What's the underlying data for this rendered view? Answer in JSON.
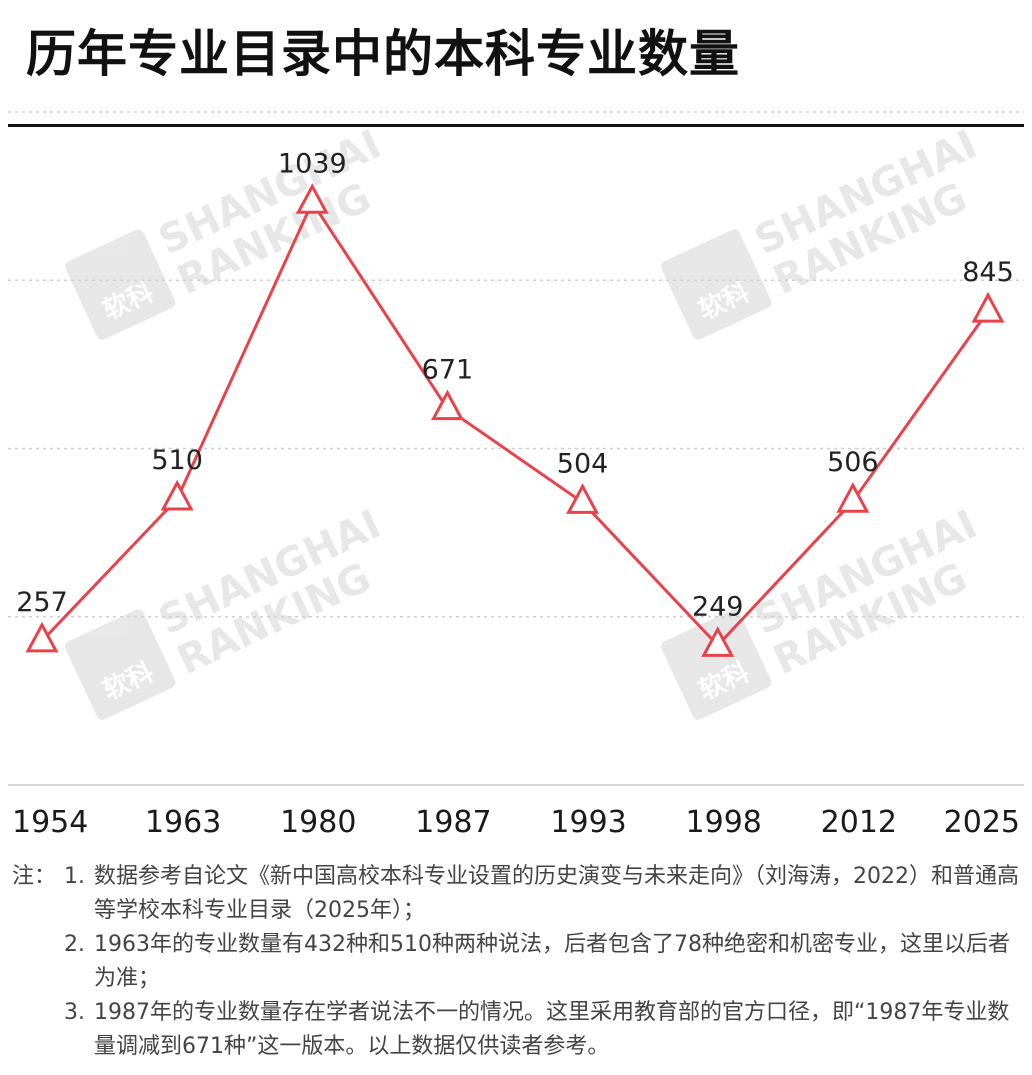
{
  "title": "历年专业目录中的本科专业数量",
  "watermark": {
    "line1": "SHANGHAI",
    "line2": "RANKING",
    "badge": "软科"
  },
  "chart_data": {
    "type": "line",
    "title": "历年专业目录中的本科专业数量",
    "categories": [
      "1954",
      "1963",
      "1980",
      "1987",
      "1993",
      "1998",
      "2012",
      "2025"
    ],
    "series": [
      {
        "values": [
          257,
          510,
          1039,
          671,
          504,
          249,
          506,
          845
        ]
      }
    ],
    "data_labels": [
      "257",
      "510",
      "1039",
      "671",
      "504",
      "249",
      "506",
      "845"
    ],
    "xlabel": "",
    "ylabel": "",
    "ylim": [
      0,
      1200
    ],
    "grid": true,
    "marker": "triangle",
    "line_color": "#e8434a"
  },
  "notes": {
    "prefix": "注：",
    "items": [
      {
        "num": "1.",
        "text": "数据参考自论文《新中国高校本科专业设置的历史演变与未来走向》（刘海涛，2022）和普通高等学校本科专业目录（2025年）；"
      },
      {
        "num": "2.",
        "text": "1963年的专业数量有432种和510种两种说法，后者包含了78种绝密和机密专业，这里以后者为准；"
      },
      {
        "num": "3.",
        "text": "1987年的专业数量存在学者说法不一的情况。这里采用教育部的官方口径，即“1987年专业数量调减到671种”这一版本。以上数据仅供读者参考。"
      }
    ]
  }
}
